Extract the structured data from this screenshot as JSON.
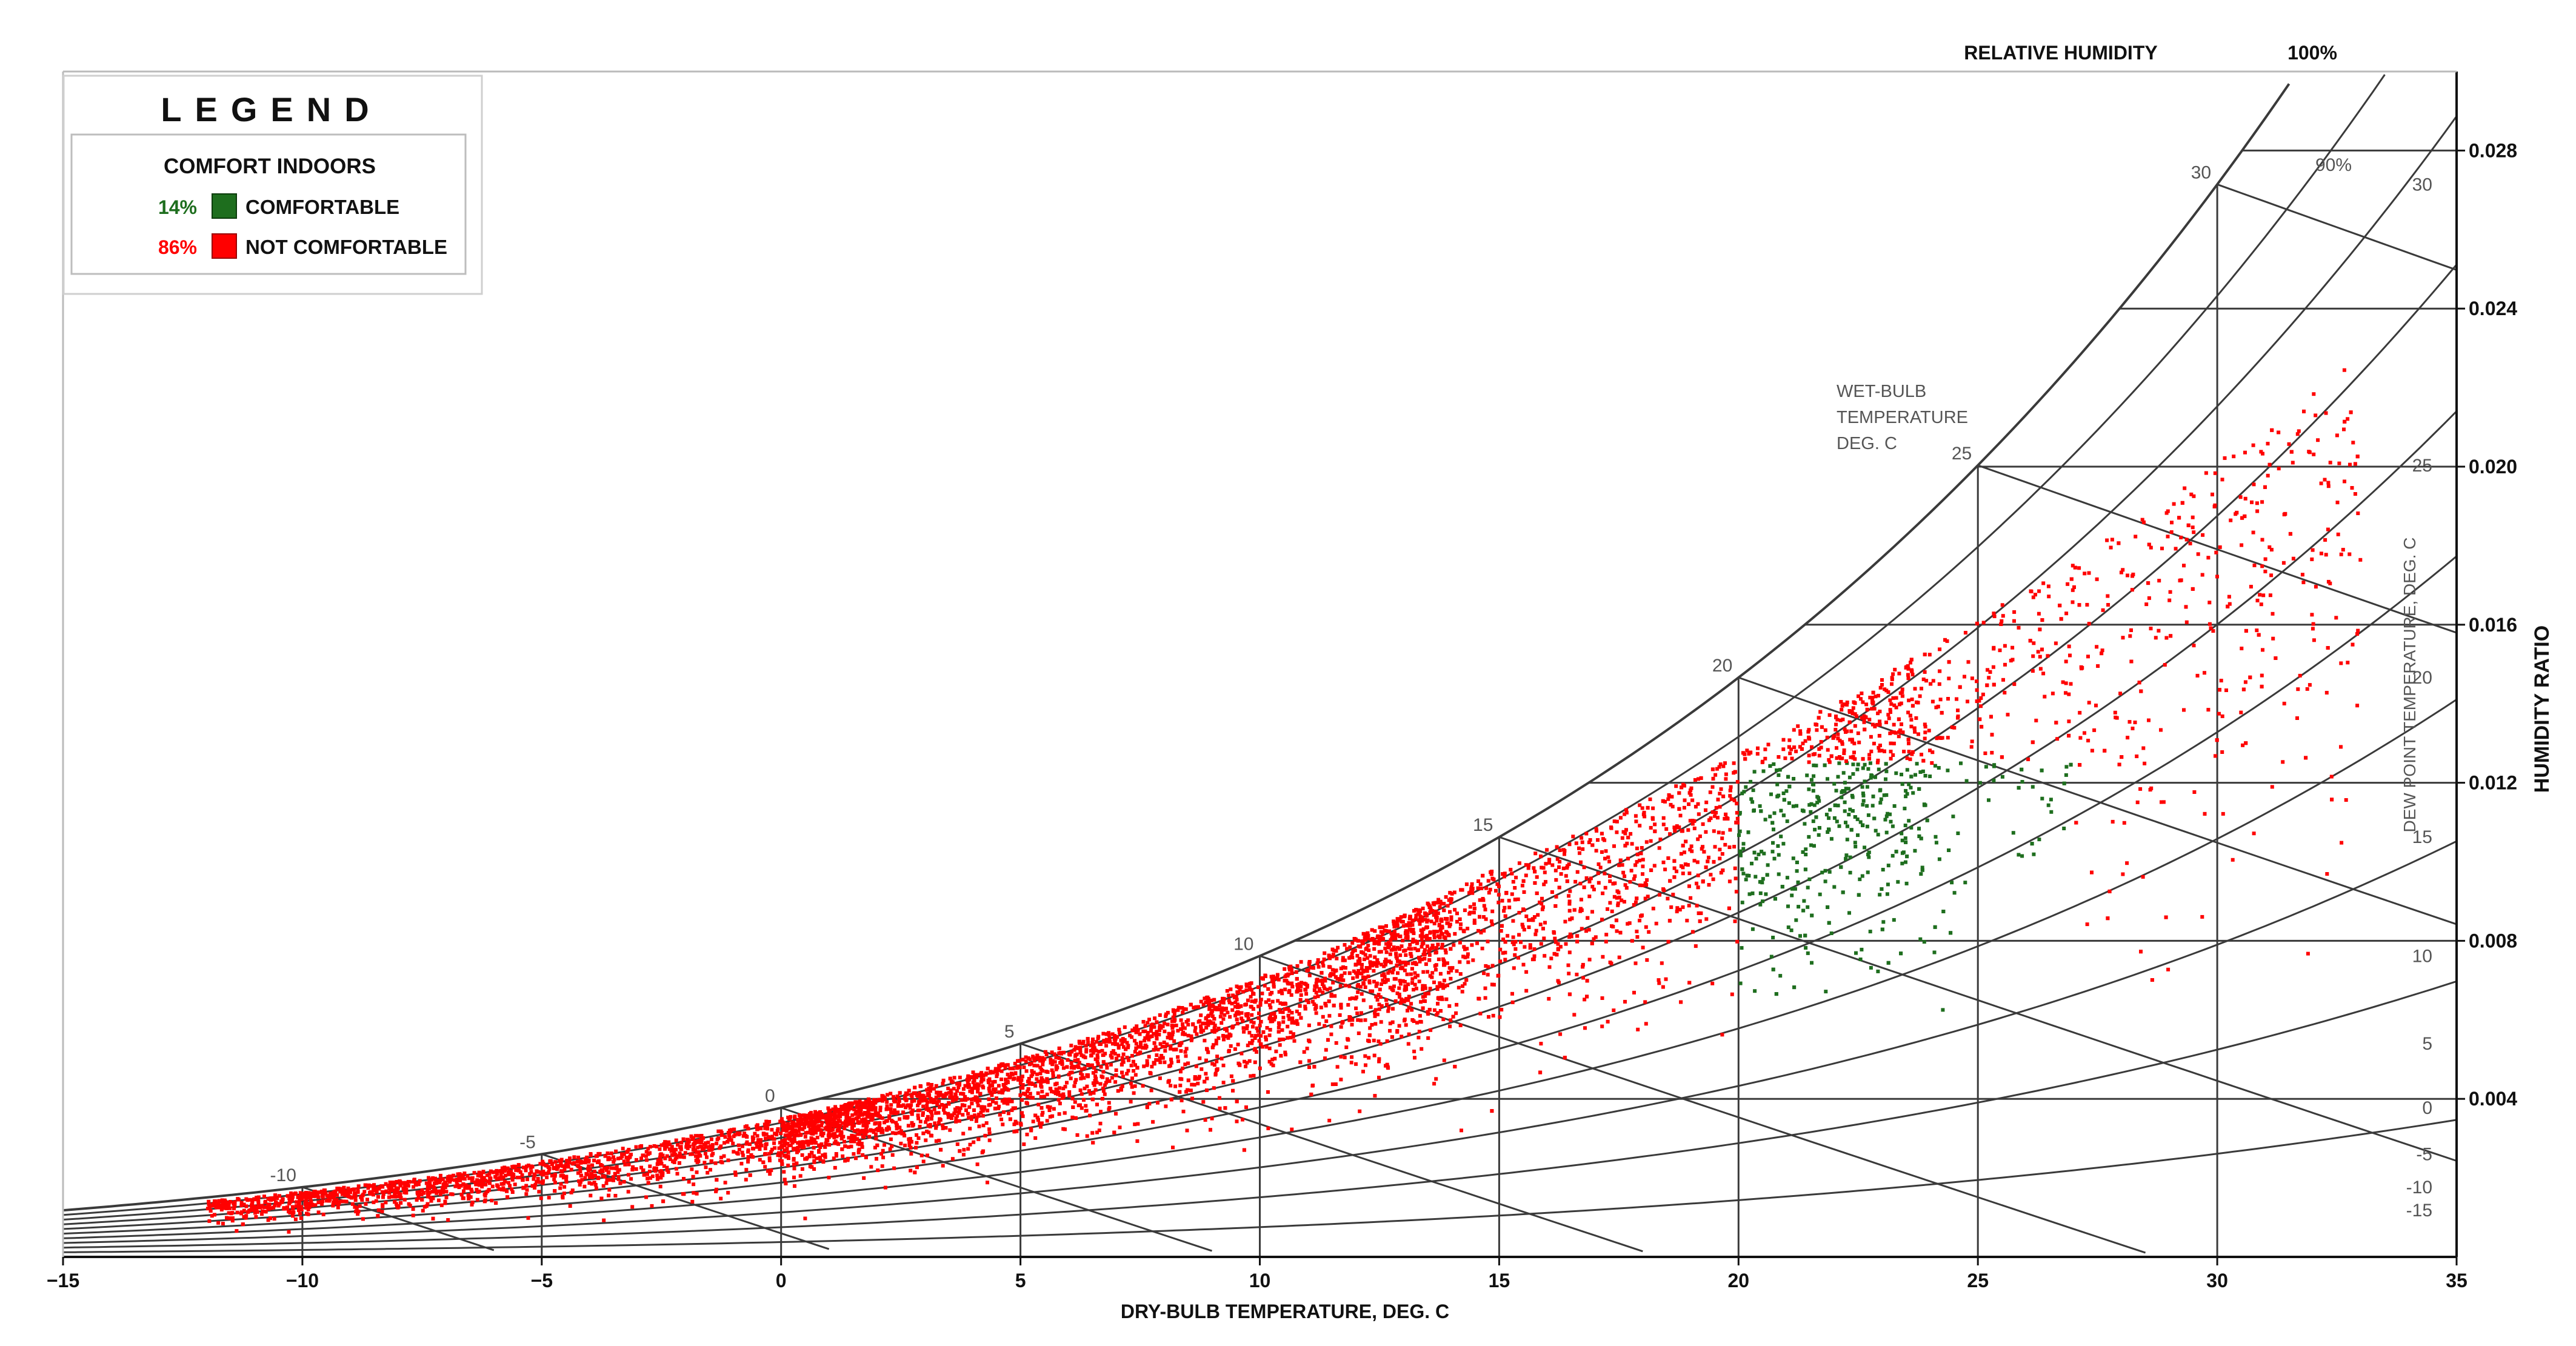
{
  "chart_data": {
    "type": "scatter",
    "title": "",
    "xlabel": "DRY-BULB TEMPERATURE, DEG. C",
    "ylabel": "HUMIDITY RATIO",
    "xlim": [
      -15,
      35
    ],
    "ylim": [
      0,
      0.03
    ],
    "x_ticks": [
      "−15",
      "−10",
      "−5",
      "0",
      "5",
      "10",
      "15",
      "20",
      "25",
      "30",
      "35"
    ],
    "y_ticks": [
      "0.004",
      "0.008",
      "0.012",
      "0.016",
      "0.020",
      "0.024",
      "0.028"
    ],
    "y_tick_values": [
      0.004,
      0.008,
      0.012,
      0.016,
      0.02,
      0.024,
      0.028
    ],
    "relative_humidity_label": "RELATIVE HUMIDITY",
    "rh_100_label": "100%",
    "rh_90_label": "90%",
    "rh_curves": [
      1.0,
      0.9,
      0.8,
      0.7,
      0.6,
      0.5,
      0.4,
      0.3,
      0.2,
      0.1
    ],
    "wet_bulb_label": [
      "WET-BULB",
      "TEMPERATURE",
      "DEG. C"
    ],
    "wet_bulb_values": [
      -10,
      -5,
      0,
      5,
      10,
      15,
      20,
      25,
      30
    ],
    "dew_point_label": "DEW POINT TEMPERATURE, DEG. C",
    "dew_point_values": [
      30,
      25,
      20,
      15,
      10,
      5,
      0,
      -5,
      -10,
      -15
    ],
    "comfort_zone": {
      "x_min": 20,
      "x_max": 27,
      "y_min": 0.003,
      "y_max": 0.0125
    },
    "legend": {
      "title": "LEGEND",
      "subtitle": "COMFORT INDOORS",
      "items": [
        {
          "percent": "14%",
          "label": "COMFORTABLE",
          "color": "#1e6e1e"
        },
        {
          "percent": "86%",
          "label": "NOT COMFORTABLE",
          "color": "#ff0000"
        }
      ]
    },
    "series": [
      {
        "name": "COMFORTABLE",
        "color": "#1e6e1e",
        "share": 0.14
      },
      {
        "name": "NOT COMFORTABLE",
        "color": "#ff0000",
        "share": 0.86
      }
    ],
    "grid": true,
    "legend_position": "top-left"
  }
}
